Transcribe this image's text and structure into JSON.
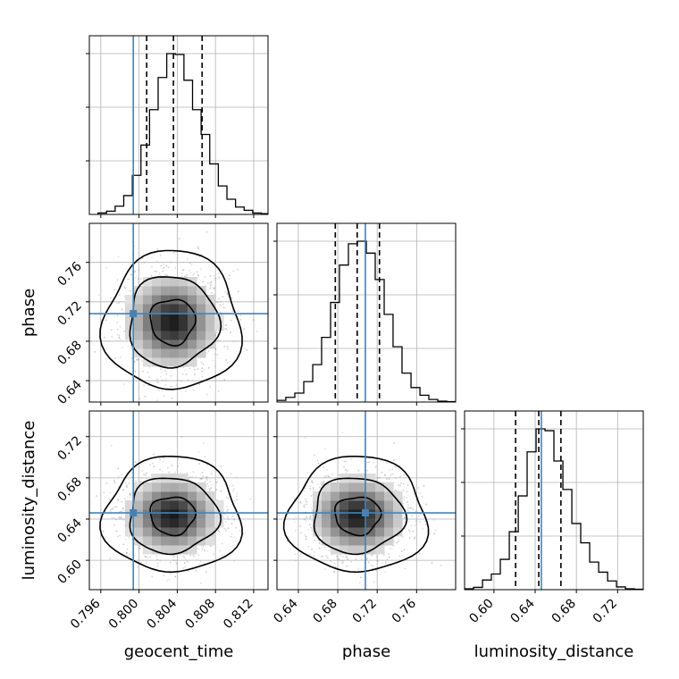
{
  "chart_data": {
    "type": "corner",
    "parameters": [
      "geocent_time",
      "phase",
      "luminosity_distance"
    ],
    "axis_labels": {
      "geocent_time": "geocent_time",
      "phase": "phase",
      "luminosity_distance": "luminosity_distance"
    },
    "ranges": {
      "geocent_time": [
        0.7948,
        0.8135
      ],
      "phase": [
        0.6183,
        0.7996
      ],
      "luminosity_distance": [
        0.5715,
        0.7449
      ]
    },
    "ticks": {
      "geocent_time": [
        "0.796",
        "0.800",
        "0.804",
        "0.808",
        "0.812"
      ],
      "phase": [
        "0.64",
        "0.68",
        "0.72",
        "0.76"
      ],
      "luminosity_distance": [
        "0.60",
        "0.64",
        "0.68",
        "0.72"
      ]
    },
    "truth_values": {
      "geocent_time": 0.7994,
      "phase": 0.708,
      "luminosity_distance": 0.646
    },
    "quantiles": {
      "geocent_time": [
        0.8008,
        0.8036,
        0.8066
      ],
      "phase": [
        0.6775,
        0.6997,
        0.7223
      ],
      "luminosity_distance": [
        0.621,
        0.6435,
        0.665
      ]
    },
    "histograms": {
      "geocent_time": {
        "edges": [
          0.7957,
          0.7966,
          0.7975,
          0.7984,
          0.7993,
          0.8002,
          0.8011,
          0.802,
          0.8029,
          0.8038,
          0.8047,
          0.8056,
          0.8065,
          0.8074,
          0.8083,
          0.8092,
          0.8101,
          0.811,
          0.8119,
          0.8128,
          0.8137
        ],
        "counts": [
          1.5,
          3.5,
          9,
          20.5,
          42.5,
          75.5,
          114,
          149,
          175,
          174,
          146,
          114,
          87,
          55,
          31,
          16.5,
          8,
          4.5,
          1.5,
          0.8
        ]
      },
      "phase": {
        "edges": [
          0.6183,
          0.6273,
          0.6364,
          0.6455,
          0.6546,
          0.6636,
          0.6727,
          0.6817,
          0.6908,
          0.6999,
          0.709,
          0.718,
          0.7271,
          0.7361,
          0.7452,
          0.7543,
          0.7634,
          0.7724,
          0.7815,
          0.7906,
          0.7996
        ],
        "counts": [
          2,
          5.5,
          10.5,
          24,
          44,
          76,
          117,
          161,
          186,
          189,
          175,
          144,
          103,
          65,
          34,
          17,
          8,
          3,
          1,
          0.5
        ]
      },
      "luminosity_distance": {
        "edges": [
          0.5715,
          0.5802,
          0.5889,
          0.5975,
          0.6062,
          0.6149,
          0.6236,
          0.6322,
          0.6409,
          0.6496,
          0.6582,
          0.6669,
          0.6756,
          0.6842,
          0.6929,
          0.7016,
          0.7103,
          0.7189,
          0.7276,
          0.7363,
          0.7449
        ],
        "counts": [
          1,
          2.5,
          10.5,
          17,
          33,
          63,
          102,
          150,
          175,
          173,
          140,
          109,
          72,
          51,
          30,
          19,
          9.5,
          3,
          1,
          0.5
        ]
      }
    },
    "means": {
      "geocent_time": 0.8035,
      "phase": 0.7,
      "luminosity_distance": 0.6435
    },
    "stds": {
      "geocent_time": 0.00235,
      "phase": 0.0232,
      "luminosity_distance": 0.0185
    },
    "contour_levels": [
      0.39,
      0.86,
      0.99
    ],
    "truth_color": "#4682b4",
    "grid": true
  }
}
